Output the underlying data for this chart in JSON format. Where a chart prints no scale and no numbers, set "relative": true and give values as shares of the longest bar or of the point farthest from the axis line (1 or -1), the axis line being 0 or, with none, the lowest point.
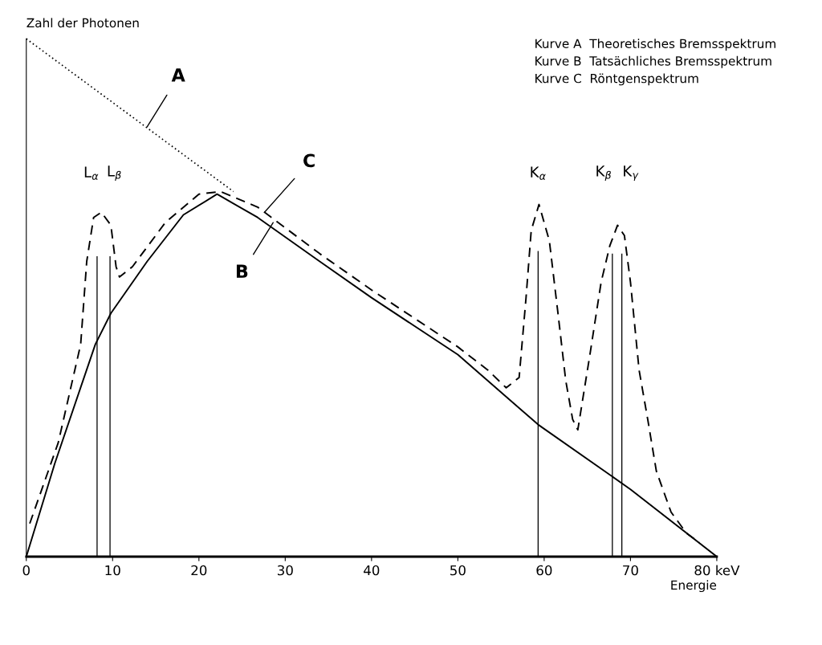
{
  "chart_data": {
    "type": "line",
    "relative": true,
    "ylabel": "Zahl der Photonen",
    "xlabel": "Energie",
    "xlim": [
      0,
      80
    ],
    "xticks": [
      0,
      10,
      20,
      30,
      40,
      50,
      60,
      70,
      {
        "value": 80,
        "label": "80 keV"
      }
    ],
    "grid": false,
    "series": [
      {
        "line_style": "dotted",
        "color": "#000000",
        "x": [
          0,
          24
        ],
        "values": [
          1,
          0.705
        ]
      },
      {
        "line_style": "solid",
        "color": "#000000",
        "x": [
          0,
          3.3,
          8,
          9.8,
          14,
          18.2,
          22.1,
          26.8,
          34,
          40,
          50,
          59.3,
          70,
          80
        ],
        "values": [
          0,
          0.18,
          0.41,
          0.47,
          0.57,
          0.66,
          0.7,
          0.655,
          0.57,
          0.5,
          0.39,
          0.255,
          0.13,
          0
        ]
      },
      {
        "line_style": "dashed",
        "color": "#000000",
        "x": [
          0.4,
          3.7,
          6.3,
          7.0,
          7.8,
          8.7,
          9.8,
          10.4,
          10.8,
          12.3,
          16.1,
          20,
          22.5,
          26.8,
          34,
          40,
          50,
          53.5,
          55.6,
          57.1,
          57.9,
          58.5,
          59.4,
          60.6,
          61.6,
          62.5,
          63.3,
          63.9,
          65.3,
          66.6,
          67.6,
          68.5,
          69.3,
          70.0,
          71.0,
          72,
          73,
          74.7,
          76.5,
          78
        ],
        "values": [
          0.064,
          0.22,
          0.41,
          0.57,
          0.655,
          0.665,
          0.64,
          0.56,
          0.54,
          0.56,
          0.645,
          0.7,
          0.705,
          0.675,
          0.585,
          0.515,
          0.405,
          0.36,
          0.326,
          0.346,
          0.5,
          0.63,
          0.68,
          0.61,
          0.47,
          0.34,
          0.265,
          0.245,
          0.39,
          0.53,
          0.6,
          0.64,
          0.62,
          0.53,
          0.36,
          0.265,
          0.165,
          0.086,
          0.045,
          0.027
        ]
      },
      {
        "type": "bar",
        "color": "#000000",
        "x": [
          8.2,
          9.7,
          59.3,
          67.9,
          69.0
        ],
        "values": [
          0.58,
          0.58,
          0.59,
          0.585,
          0.585
        ]
      }
    ],
    "annotations": [
      "Kurve A  Theoretisches Bremsspektrum",
      "Kurve B  Tatsächliches Bremsspektrum",
      "Kurve C  Röntgenspektrum",
      "L$_{α}$",
      "L$_{β}$",
      "K$_{α}$",
      "K$_{β}$",
      "K$_{γ}$",
      {
        "text": "A",
        "x": 14,
        "y": 0.83
      },
      {
        "text": "B",
        "x": 28.6,
        "y": 0.645
      },
      {
        "text": "C",
        "x": 27.6,
        "y": 0.665
      }
    ]
  }
}
